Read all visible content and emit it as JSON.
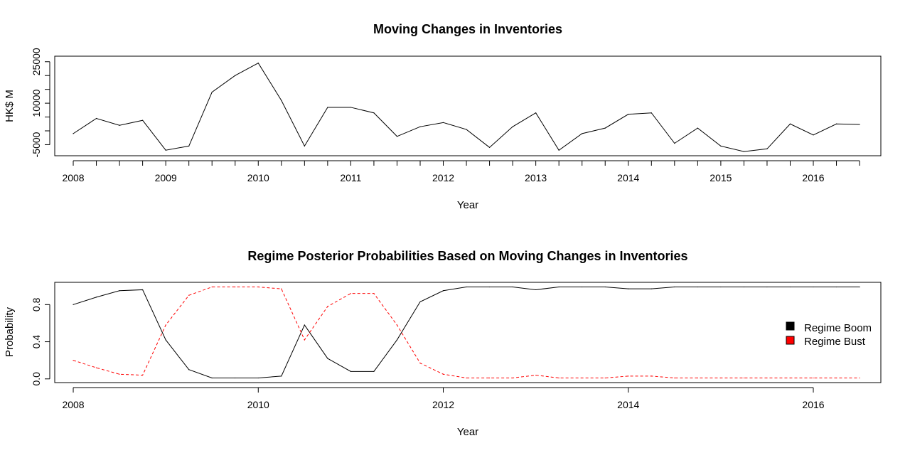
{
  "chart_data": [
    {
      "type": "line",
      "title": "Moving Changes in Inventories",
      "xlabel": "Year",
      "ylabel": "HK$ M",
      "xlim": [
        2007.8,
        2016.73
      ],
      "ylim": [
        -9000,
        27000
      ],
      "x_ticks": [
        2008,
        2009,
        2010,
        2011,
        2012,
        2013,
        2014,
        2015,
        2016
      ],
      "x_tick_labels": [
        "2008",
        "2009",
        "2010",
        "2011",
        "2012",
        "2013",
        "2014",
        "2015",
        "2016"
      ],
      "x_minor_ticks": [
        2008,
        2008.25,
        2008.5,
        2008.75,
        2009,
        2009.25,
        2009.5,
        2009.75,
        2010,
        2010.25,
        2010.5,
        2010.75,
        2011,
        2011.25,
        2011.5,
        2011.75,
        2012,
        2012.25,
        2012.5,
        2012.75,
        2013,
        2013.25,
        2013.5,
        2013.75,
        2014,
        2014.25,
        2014.5,
        2014.75,
        2015,
        2015.25,
        2015.5,
        2015.75,
        2016,
        2016.25,
        2016.5
      ],
      "y_ticks": [
        -5000,
        0,
        5000,
        10000,
        15000,
        20000,
        25000
      ],
      "y_tick_labels": [
        "-5000",
        "",
        "",
        "10000",
        "",
        "",
        "25000"
      ],
      "series": [
        {
          "color": "#000000",
          "dash": "solid",
          "x": [
            2008,
            2008.25,
            2008.5,
            2008.75,
            2009,
            2009.25,
            2009.5,
            2009.75,
            2010,
            2010.25,
            2010.5,
            2010.75,
            2011,
            2011.25,
            2011.5,
            2011.75,
            2012,
            2012.25,
            2012.5,
            2012.75,
            2013,
            2013.25,
            2013.5,
            2013.75,
            2014,
            2014.25,
            2014.5,
            2014.75,
            2015,
            2015.25,
            2015.5,
            2015.75,
            2016,
            2016.25,
            2016.5
          ],
          "values": [
            -1000,
            4500,
            2000,
            3800,
            -7000,
            -5500,
            14000,
            20000,
            24500,
            11000,
            -5500,
            8500,
            8500,
            6500,
            -2000,
            1500,
            3000,
            500,
            -6000,
            1500,
            6500,
            -7000,
            -1000,
            1000,
            6000,
            6500,
            -4500,
            1000,
            -5500,
            -7500,
            -6500,
            2500,
            -1500,
            2500,
            2300
          ]
        }
      ]
    },
    {
      "type": "line",
      "title": "Regime Posterior Probabilities Based on Moving Changes in Inventories",
      "xlabel": "Year",
      "ylabel": "Probability",
      "xlim": [
        2007.8,
        2016.73
      ],
      "ylim": [
        -0.04,
        1.04
      ],
      "x_ticks": [
        2008,
        2010,
        2012,
        2014,
        2016
      ],
      "x_tick_labels": [
        "2008",
        "2010",
        "2012",
        "2014",
        "2016"
      ],
      "y_ticks": [
        0,
        0.4,
        0.8
      ],
      "y_tick_labels": [
        "0.0",
        "0.4",
        "0.8"
      ],
      "legend": {
        "position": "right",
        "entries": [
          {
            "label": "Regime Boom",
            "color": "#000000"
          },
          {
            "label": "Regime Bust",
            "color": "#ff0000"
          }
        ]
      },
      "series": [
        {
          "name": "Regime Boom",
          "color": "#000000",
          "dash": "solid",
          "x": [
            2008,
            2008.25,
            2008.5,
            2008.75,
            2009,
            2009.25,
            2009.5,
            2009.75,
            2010,
            2010.25,
            2010.5,
            2010.75,
            2011,
            2011.25,
            2011.5,
            2011.75,
            2012,
            2012.25,
            2012.5,
            2012.75,
            2013,
            2013.25,
            2013.5,
            2013.75,
            2014,
            2014.25,
            2014.5,
            2014.75,
            2015,
            2015.25,
            2015.5,
            2015.75,
            2016,
            2016.25,
            2016.5
          ],
          "values": [
            0.8,
            0.88,
            0.95,
            0.96,
            0.42,
            0.1,
            0.01,
            0.01,
            0.01,
            0.03,
            0.58,
            0.22,
            0.08,
            0.08,
            0.42,
            0.83,
            0.95,
            0.99,
            0.99,
            0.99,
            0.96,
            0.99,
            0.99,
            0.99,
            0.97,
            0.97,
            0.99,
            0.99,
            0.99,
            0.99,
            0.99,
            0.99,
            0.99,
            0.99,
            0.99
          ]
        },
        {
          "name": "Regime Bust",
          "color": "#ff0000",
          "dash": "dashed",
          "x": [
            2008,
            2008.25,
            2008.5,
            2008.75,
            2009,
            2009.25,
            2009.5,
            2009.75,
            2010,
            2010.25,
            2010.5,
            2010.75,
            2011,
            2011.25,
            2011.5,
            2011.75,
            2012,
            2012.25,
            2012.5,
            2012.75,
            2013,
            2013.25,
            2013.5,
            2013.75,
            2014,
            2014.25,
            2014.5,
            2014.75,
            2015,
            2015.25,
            2015.5,
            2015.75,
            2016,
            2016.25,
            2016.5
          ],
          "values": [
            0.2,
            0.12,
            0.05,
            0.04,
            0.58,
            0.9,
            0.99,
            0.99,
            0.99,
            0.97,
            0.42,
            0.78,
            0.92,
            0.92,
            0.58,
            0.17,
            0.05,
            0.01,
            0.01,
            0.01,
            0.04,
            0.01,
            0.01,
            0.01,
            0.03,
            0.03,
            0.01,
            0.01,
            0.01,
            0.01,
            0.01,
            0.01,
            0.01,
            0.01,
            0.01
          ]
        }
      ]
    }
  ]
}
